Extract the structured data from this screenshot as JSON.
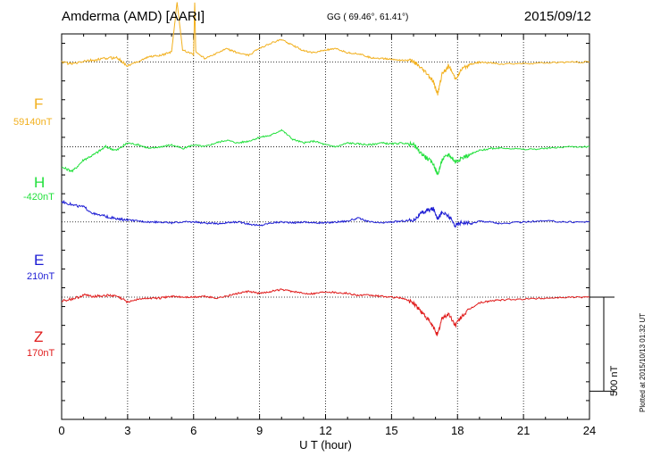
{
  "header": {
    "station": "Amderma (AMD)  [AARI]",
    "coords": "GG ( 69.46°,  61.41°)",
    "date": "2015/09/12"
  },
  "plotted_note": "Plotted at 2015/10/13 01:32 UT",
  "scale_bar_label": "500 nT",
  "colors": {
    "F": "#f2b01e",
    "H": "#22e03c",
    "E": "#1c1cd4",
    "Z": "#e01a1a"
  },
  "chart_data": {
    "type": "line",
    "xlabel": "U T (hour)",
    "xlim": [
      0,
      24
    ],
    "x_ticks": [
      0,
      3,
      6,
      9,
      12,
      15,
      18,
      21,
      24
    ],
    "x_tick_labels": [
      "0",
      "3",
      "6",
      "9",
      "12",
      "15",
      "18",
      "21",
      "24"
    ],
    "ylim": [
      -1900,
      150
    ],
    "y_unit": "nT",
    "grid": true,
    "scale_bar_nT": 500,
    "series": [
      {
        "name": "F",
        "baseline_label": "59140nT",
        "offset": 0,
        "color": "#f2b01e",
        "points": [
          [
            0,
            0
          ],
          [
            0.5,
            -10
          ],
          [
            1,
            5
          ],
          [
            1.5,
            10
          ],
          [
            2,
            20
          ],
          [
            2.5,
            25
          ],
          [
            3,
            -20
          ],
          [
            3.5,
            5
          ],
          [
            4,
            30
          ],
          [
            4.5,
            35
          ],
          [
            5,
            55
          ],
          [
            5.25,
            320
          ],
          [
            5.5,
            65
          ],
          [
            6,
            40
          ],
          [
            6.05,
            320
          ],
          [
            6.1,
            55
          ],
          [
            6.5,
            20
          ],
          [
            7,
            45
          ],
          [
            7.5,
            70
          ],
          [
            8,
            50
          ],
          [
            8.5,
            35
          ],
          [
            9,
            75
          ],
          [
            9.5,
            100
          ],
          [
            10,
            120
          ],
          [
            10.5,
            90
          ],
          [
            11,
            60
          ],
          [
            11.5,
            50
          ],
          [
            12,
            65
          ],
          [
            12.5,
            70
          ],
          [
            13,
            50
          ],
          [
            13.5,
            45
          ],
          [
            14,
            25
          ],
          [
            14.5,
            20
          ],
          [
            15,
            15
          ],
          [
            15.5,
            10
          ],
          [
            16,
            5
          ],
          [
            16.3,
            -30
          ],
          [
            16.6,
            -60
          ],
          [
            16.9,
            -105
          ],
          [
            17.1,
            -170
          ],
          [
            17.3,
            -60
          ],
          [
            17.6,
            -20
          ],
          [
            17.9,
            -90
          ],
          [
            18.2,
            -40
          ],
          [
            18.6,
            -10
          ],
          [
            19,
            0
          ],
          [
            19.5,
            -5
          ],
          [
            20,
            -10
          ],
          [
            21,
            -8
          ],
          [
            22,
            -5
          ],
          [
            23,
            0
          ],
          [
            24,
            0
          ]
        ]
      },
      {
        "name": "H",
        "baseline_label": "-420nT",
        "offset": -450,
        "color": "#22e03c",
        "points": [
          [
            0,
            -110
          ],
          [
            0.5,
            -130
          ],
          [
            1,
            -70
          ],
          [
            1.5,
            -40
          ],
          [
            2,
            0
          ],
          [
            2.5,
            -20
          ],
          [
            3,
            20
          ],
          [
            3.5,
            10
          ],
          [
            4,
            -10
          ],
          [
            4.5,
            0
          ],
          [
            5,
            10
          ],
          [
            5.5,
            -10
          ],
          [
            6,
            10
          ],
          [
            6.5,
            0
          ],
          [
            7,
            20
          ],
          [
            7.5,
            35
          ],
          [
            8,
            20
          ],
          [
            8.5,
            30
          ],
          [
            9,
            50
          ],
          [
            9.5,
            60
          ],
          [
            10,
            90
          ],
          [
            10.5,
            40
          ],
          [
            11,
            20
          ],
          [
            11.5,
            30
          ],
          [
            12,
            10
          ],
          [
            12.5,
            0
          ],
          [
            13,
            20
          ],
          [
            13.5,
            15
          ],
          [
            14,
            10
          ],
          [
            14.5,
            20
          ],
          [
            15,
            15
          ],
          [
            15.5,
            20
          ],
          [
            16,
            10
          ],
          [
            16.3,
            -30
          ],
          [
            16.6,
            -60
          ],
          [
            16.9,
            -90
          ],
          [
            17.1,
            -150
          ],
          [
            17.3,
            -70
          ],
          [
            17.6,
            -40
          ],
          [
            17.9,
            -80
          ],
          [
            18.2,
            -60
          ],
          [
            18.6,
            -40
          ],
          [
            19,
            -20
          ],
          [
            19.5,
            -10
          ],
          [
            20,
            -5
          ],
          [
            21,
            -15
          ],
          [
            22,
            -10
          ],
          [
            23,
            0
          ],
          [
            24,
            0
          ]
        ]
      },
      {
        "name": "E",
        "baseline_label": "210nT",
        "offset": -850,
        "color": "#1c1cd4",
        "points": [
          [
            0,
            110
          ],
          [
            0.5,
            90
          ],
          [
            1,
            80
          ],
          [
            1.5,
            40
          ],
          [
            2,
            30
          ],
          [
            2.5,
            15
          ],
          [
            3,
            10
          ],
          [
            3.5,
            5
          ],
          [
            4,
            0
          ],
          [
            4.5,
            0
          ],
          [
            5,
            -5
          ],
          [
            5.5,
            0
          ],
          [
            6,
            0
          ],
          [
            6.5,
            -5
          ],
          [
            7,
            -10
          ],
          [
            7.5,
            -5
          ],
          [
            8,
            0
          ],
          [
            8.5,
            -10
          ],
          [
            9,
            -20
          ],
          [
            9.5,
            -5
          ],
          [
            10,
            0
          ],
          [
            10.5,
            -5
          ],
          [
            11,
            0
          ],
          [
            11.5,
            -5
          ],
          [
            12,
            -5
          ],
          [
            12.5,
            0
          ],
          [
            13,
            5
          ],
          [
            13.5,
            20
          ],
          [
            14,
            0
          ],
          [
            14.5,
            -5
          ],
          [
            15,
            0
          ],
          [
            15.5,
            5
          ],
          [
            16,
            10
          ],
          [
            16.3,
            40
          ],
          [
            16.6,
            60
          ],
          [
            16.9,
            70
          ],
          [
            17.1,
            20
          ],
          [
            17.3,
            50
          ],
          [
            17.6,
            30
          ],
          [
            17.9,
            -20
          ],
          [
            18.2,
            0
          ],
          [
            18.6,
            -10
          ],
          [
            19,
            5
          ],
          [
            19.5,
            0
          ],
          [
            20,
            -10
          ],
          [
            21,
            0
          ],
          [
            22,
            5
          ],
          [
            23,
            0
          ],
          [
            24,
            0
          ]
        ]
      },
      {
        "name": "Z",
        "baseline_label": "170nT",
        "offset": -1250,
        "color": "#e01a1a",
        "points": [
          [
            0,
            -20
          ],
          [
            0.5,
            -10
          ],
          [
            1,
            10
          ],
          [
            1.5,
            5
          ],
          [
            2,
            10
          ],
          [
            2.5,
            5
          ],
          [
            3,
            -25
          ],
          [
            3.5,
            -10
          ],
          [
            4,
            -5
          ],
          [
            4.5,
            -5
          ],
          [
            5,
            5
          ],
          [
            5.5,
            0
          ],
          [
            6,
            0
          ],
          [
            6.5,
            5
          ],
          [
            7,
            -5
          ],
          [
            7.5,
            5
          ],
          [
            8,
            20
          ],
          [
            8.5,
            30
          ],
          [
            9,
            20
          ],
          [
            9.5,
            30
          ],
          [
            10,
            40
          ],
          [
            10.5,
            30
          ],
          [
            11,
            20
          ],
          [
            11.5,
            20
          ],
          [
            12,
            30
          ],
          [
            12.5,
            25
          ],
          [
            13,
            20
          ],
          [
            13.5,
            10
          ],
          [
            14,
            10
          ],
          [
            14.5,
            5
          ],
          [
            15,
            0
          ],
          [
            15.5,
            -5
          ],
          [
            16,
            -30
          ],
          [
            16.3,
            -70
          ],
          [
            16.6,
            -110
          ],
          [
            16.9,
            -160
          ],
          [
            17.1,
            -200
          ],
          [
            17.3,
            -110
          ],
          [
            17.6,
            -90
          ],
          [
            17.9,
            -150
          ],
          [
            18.2,
            -100
          ],
          [
            18.6,
            -60
          ],
          [
            19,
            -30
          ],
          [
            19.5,
            -20
          ],
          [
            20,
            -15
          ],
          [
            21,
            -10
          ],
          [
            22,
            -5
          ],
          [
            23,
            0
          ],
          [
            24,
            0
          ]
        ]
      }
    ]
  }
}
